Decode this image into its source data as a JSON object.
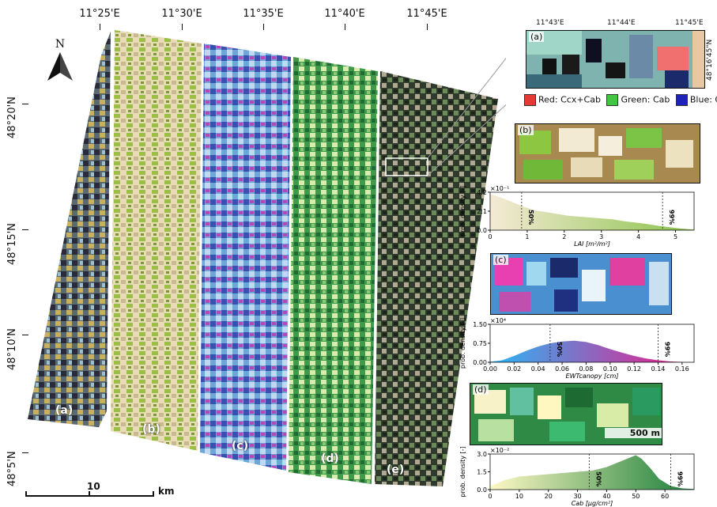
{
  "map": {
    "lon_labels": [
      "11°25'E",
      "11°30'E",
      "11°35'E",
      "11°40'E",
      "11°45'E"
    ],
    "lat_labels": [
      "48°20'N",
      "48°15'N",
      "48°10'N",
      "48°5'N"
    ],
    "north_label": "N",
    "scale_value": "10",
    "scale_unit": "km",
    "strip_labels": [
      "(a)",
      "(b)",
      "(c)",
      "(d)",
      "(e)"
    ]
  },
  "inset_a": {
    "label": "(a)",
    "lon_labels": [
      "11°43'E",
      "11°44'E",
      "11°45'E"
    ],
    "lat_label": "48°16'45\"N",
    "legend": [
      {
        "text": "Red: Ccx+Cab",
        "color": "#e53935"
      },
      {
        "text": "Green: Cab",
        "color": "#43c443"
      },
      {
        "text": "Blue: Cw",
        "color": "#1e22b8"
      }
    ]
  },
  "panel_b": {
    "label": "(b)",
    "chart_data": {
      "type": "area",
      "xlabel": "LAI [m²/m²]",
      "ylabel": "prob. density [-]",
      "y_exponent": "×10⁻¹",
      "y_ticks": [
        "0.0",
        "2.1",
        "4.2"
      ],
      "x_ticks": [
        "0",
        "1",
        "2",
        "3",
        "4",
        "5"
      ],
      "xlim": [
        0,
        5.5
      ],
      "ylim": [
        0,
        4.2
      ],
      "percentiles": [
        {
          "label": "50%",
          "x": 0.85
        },
        {
          "label": "99%",
          "x": 4.65
        }
      ],
      "color_start": "#f5ead6",
      "color_end": "#8bc34a",
      "x": [
        0,
        0.3,
        0.6,
        0.9,
        1.2,
        1.5,
        1.8,
        2.1,
        2.4,
        2.7,
        3.0,
        3.3,
        3.6,
        3.9,
        4.2,
        4.5,
        4.8,
        5.1,
        5.5
      ],
      "y": [
        4.0,
        3.6,
        3.1,
        2.6,
        2.2,
        2.0,
        1.8,
        1.6,
        1.5,
        1.4,
        1.3,
        1.2,
        1.0,
        0.85,
        0.7,
        0.5,
        0.35,
        0.2,
        0.05
      ]
    }
  },
  "panel_c": {
    "label": "(c)",
    "chart_data": {
      "type": "area",
      "xlabel": "EWTcanopy [cm]",
      "ylabel": "prob. density [-]",
      "y_exponent": "×10⁴",
      "y_ticks": [
        "0.00",
        "0.75",
        "1.50"
      ],
      "x_ticks": [
        "0.00",
        "0.02",
        "0.04",
        "0.06",
        "0.08",
        "0.10",
        "0.12",
        "0.14",
        "0.16"
      ],
      "xlim": [
        0,
        0.17
      ],
      "ylim": [
        0,
        1.5
      ],
      "percentiles": [
        {
          "label": "50%",
          "x": 0.05
        },
        {
          "label": "99%",
          "x": 0.14
        }
      ],
      "color_start": "#29b6f6",
      "color_end": "#e91e8c",
      "x": [
        0.0,
        0.01,
        0.02,
        0.03,
        0.04,
        0.05,
        0.06,
        0.07,
        0.08,
        0.09,
        0.1,
        0.11,
        0.12,
        0.13,
        0.14,
        0.15,
        0.16
      ],
      "y": [
        0.02,
        0.08,
        0.25,
        0.45,
        0.62,
        0.75,
        0.82,
        0.85,
        0.8,
        0.68,
        0.52,
        0.38,
        0.25,
        0.15,
        0.08,
        0.03,
        0.01
      ]
    }
  },
  "panel_d": {
    "label": "(d)",
    "scale_value": "500",
    "scale_unit": "m",
    "chart_data": {
      "type": "area",
      "xlabel": "Cab [μg/cm²]",
      "ylabel": "prob. density [-]",
      "y_exponent": "×10⁻²",
      "y_ticks": [
        "0.0",
        "1.5",
        "3.0"
      ],
      "x_ticks": [
        "0",
        "10",
        "20",
        "30",
        "40",
        "50",
        "60"
      ],
      "xlim": [
        0,
        70
      ],
      "ylim": [
        0,
        3.0
      ],
      "percentiles": [
        {
          "label": "50%",
          "x": 34
        },
        {
          "label": "99%",
          "x": 62
        }
      ],
      "color_start": "#fff9c4",
      "color_end": "#1b7f3a",
      "x": [
        0,
        5,
        10,
        15,
        20,
        25,
        30,
        35,
        40,
        45,
        48,
        50,
        52,
        55,
        58,
        62,
        66,
        70
      ],
      "y": [
        0.3,
        0.8,
        1.1,
        1.2,
        1.3,
        1.4,
        1.5,
        1.6,
        1.9,
        2.4,
        2.7,
        2.9,
        2.6,
        1.8,
        0.9,
        0.3,
        0.1,
        0.05
      ]
    }
  }
}
